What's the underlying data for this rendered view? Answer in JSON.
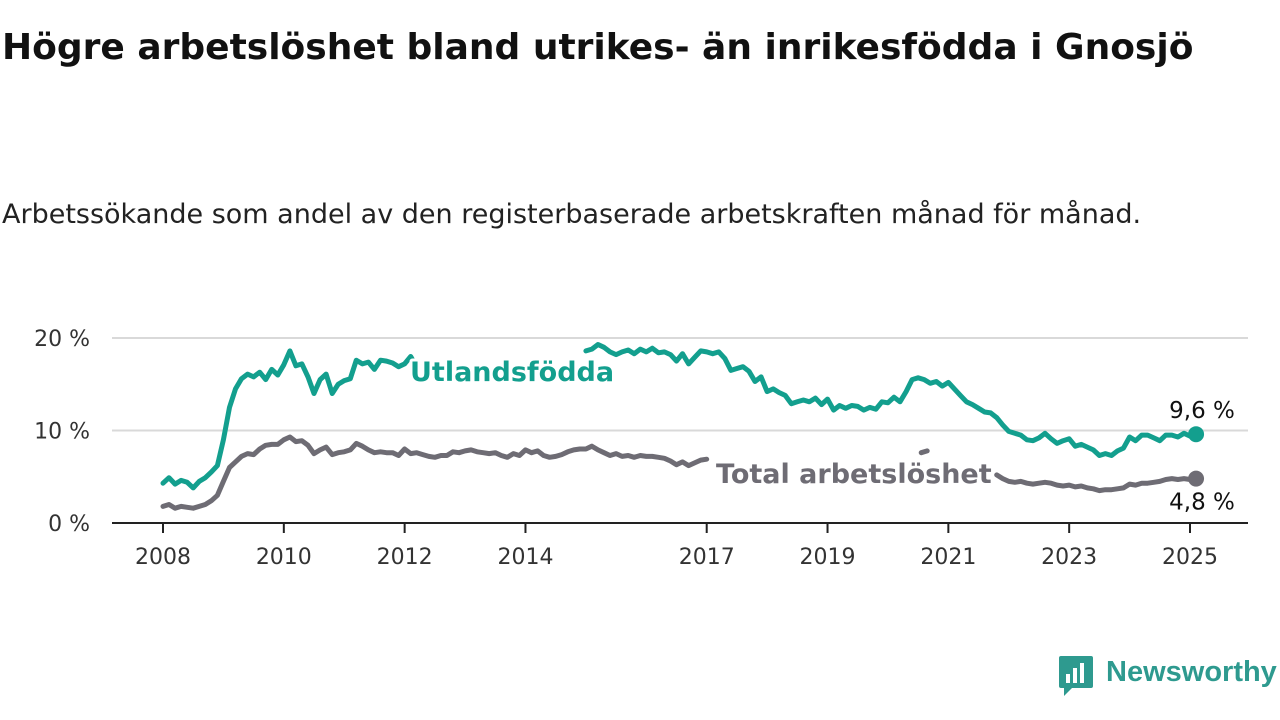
{
  "page": {
    "title": "Högre arbetslöshet bland utrikes- än inrikesfödda i Gnosjö",
    "subtitle": "Arbetssökande som andel av den registerbaserade arbetskraften månad för månad."
  },
  "brand": {
    "name": "Newsworthy",
    "color": "#2e9a8f",
    "icon": "bar-chart-speech-bubble-icon"
  },
  "chart_data": {
    "type": "line",
    "grid": true,
    "x_ticks": [
      "2008",
      "2010",
      "2012",
      "2014",
      "2017",
      "2019",
      "2021",
      "2023",
      "2025"
    ],
    "x_range": [
      2007.7,
      2025.9
    ],
    "y_ticks": [
      "0 %",
      "10 %",
      "20 %"
    ],
    "y_tick_values": [
      0,
      10,
      20
    ],
    "ylim": [
      0,
      20.5
    ],
    "series": [
      {
        "name": "Utlandsfödda",
        "color": "#139f8e",
        "end_label": "9,6 %",
        "points": [
          [
            2008.0,
            4.3
          ],
          [
            2008.1,
            4.9
          ],
          [
            2008.2,
            4.2
          ],
          [
            2008.3,
            4.6
          ],
          [
            2008.4,
            4.4
          ],
          [
            2008.5,
            3.8
          ],
          [
            2008.6,
            4.5
          ],
          [
            2008.7,
            4.9
          ],
          [
            2008.8,
            5.5
          ],
          [
            2008.9,
            6.2
          ],
          [
            2009.0,
            9.0
          ],
          [
            2009.1,
            12.5
          ],
          [
            2009.2,
            14.5
          ],
          [
            2009.3,
            15.6
          ],
          [
            2009.4,
            16.1
          ],
          [
            2009.5,
            15.8
          ],
          [
            2009.6,
            16.3
          ],
          [
            2009.7,
            15.5
          ],
          [
            2009.8,
            16.6
          ],
          [
            2009.9,
            16.0
          ],
          [
            2010.0,
            17.1
          ],
          [
            2010.1,
            18.6
          ],
          [
            2010.2,
            17.0
          ],
          [
            2010.3,
            17.2
          ],
          [
            2010.4,
            15.8
          ],
          [
            2010.5,
            14.0
          ],
          [
            2010.6,
            15.5
          ],
          [
            2010.7,
            16.1
          ],
          [
            2010.8,
            14.0
          ],
          [
            2010.9,
            15.0
          ],
          [
            2011.0,
            15.4
          ],
          [
            2011.1,
            15.6
          ],
          [
            2011.2,
            17.6
          ],
          [
            2011.3,
            17.2
          ],
          [
            2011.4,
            17.4
          ],
          [
            2011.5,
            16.6
          ],
          [
            2011.6,
            17.6
          ],
          [
            2011.7,
            17.5
          ],
          [
            2011.8,
            17.3
          ],
          [
            2011.9,
            16.9
          ],
          [
            2012.0,
            17.2
          ],
          [
            2012.1,
            18.0
          ],
          [
            2012.2,
            16.8
          ],
          [
            2015.0,
            18.6
          ],
          [
            2015.1,
            18.8
          ],
          [
            2015.2,
            19.3
          ],
          [
            2015.3,
            19.0
          ],
          [
            2015.4,
            18.5
          ],
          [
            2015.5,
            18.2
          ],
          [
            2015.6,
            18.5
          ],
          [
            2015.7,
            18.7
          ],
          [
            2015.8,
            18.3
          ],
          [
            2015.9,
            18.8
          ],
          [
            2016.0,
            18.5
          ],
          [
            2016.1,
            18.9
          ],
          [
            2016.2,
            18.4
          ],
          [
            2016.3,
            18.5
          ],
          [
            2016.4,
            18.2
          ],
          [
            2016.5,
            17.5
          ],
          [
            2016.6,
            18.3
          ],
          [
            2016.7,
            17.2
          ],
          [
            2016.8,
            17.9
          ],
          [
            2016.9,
            18.6
          ],
          [
            2017.0,
            18.5
          ],
          [
            2017.1,
            18.3
          ],
          [
            2017.2,
            18.5
          ],
          [
            2017.3,
            17.8
          ],
          [
            2017.4,
            16.5
          ],
          [
            2017.5,
            16.7
          ],
          [
            2017.6,
            16.9
          ],
          [
            2017.7,
            16.4
          ],
          [
            2017.8,
            15.3
          ],
          [
            2017.9,
            15.8
          ],
          [
            2018.0,
            14.2
          ],
          [
            2018.1,
            14.5
          ],
          [
            2018.2,
            14.1
          ],
          [
            2018.3,
            13.8
          ],
          [
            2018.4,
            12.9
          ],
          [
            2018.5,
            13.1
          ],
          [
            2018.6,
            13.3
          ],
          [
            2018.7,
            13.1
          ],
          [
            2018.8,
            13.5
          ],
          [
            2018.9,
            12.8
          ],
          [
            2019.0,
            13.4
          ],
          [
            2019.1,
            12.2
          ],
          [
            2019.2,
            12.7
          ],
          [
            2019.3,
            12.4
          ],
          [
            2019.4,
            12.7
          ],
          [
            2019.5,
            12.6
          ],
          [
            2019.6,
            12.2
          ],
          [
            2019.7,
            12.5
          ],
          [
            2019.8,
            12.3
          ],
          [
            2019.9,
            13.1
          ],
          [
            2020.0,
            13.0
          ],
          [
            2020.1,
            13.6
          ],
          [
            2020.2,
            13.1
          ],
          [
            2020.3,
            14.2
          ],
          [
            2020.4,
            15.5
          ],
          [
            2020.5,
            15.7
          ],
          [
            2020.6,
            15.5
          ],
          [
            2020.7,
            15.1
          ],
          [
            2020.8,
            15.3
          ],
          [
            2020.9,
            14.8
          ],
          [
            2021.0,
            15.2
          ],
          [
            2021.1,
            14.5
          ],
          [
            2021.2,
            13.8
          ],
          [
            2021.3,
            13.1
          ],
          [
            2021.4,
            12.8
          ],
          [
            2021.5,
            12.4
          ],
          [
            2021.6,
            12.0
          ],
          [
            2021.7,
            11.9
          ],
          [
            2021.8,
            11.4
          ],
          [
            2021.9,
            10.6
          ],
          [
            2022.0,
            9.9
          ],
          [
            2022.1,
            9.7
          ],
          [
            2022.2,
            9.5
          ],
          [
            2022.3,
            9.0
          ],
          [
            2022.4,
            8.9
          ],
          [
            2022.5,
            9.2
          ],
          [
            2022.6,
            9.7
          ],
          [
            2022.7,
            9.1
          ],
          [
            2022.8,
            8.6
          ],
          [
            2022.9,
            8.9
          ],
          [
            2023.0,
            9.1
          ],
          [
            2023.1,
            8.3
          ],
          [
            2023.2,
            8.5
          ],
          [
            2023.3,
            8.2
          ],
          [
            2023.4,
            7.9
          ],
          [
            2023.5,
            7.3
          ],
          [
            2023.6,
            7.5
          ],
          [
            2023.7,
            7.3
          ],
          [
            2023.8,
            7.8
          ],
          [
            2023.9,
            8.1
          ],
          [
            2024.0,
            9.3
          ],
          [
            2024.1,
            8.9
          ],
          [
            2024.2,
            9.5
          ],
          [
            2024.3,
            9.5
          ],
          [
            2024.4,
            9.2
          ],
          [
            2024.5,
            8.9
          ],
          [
            2024.6,
            9.5
          ],
          [
            2024.7,
            9.5
          ],
          [
            2024.8,
            9.3
          ],
          [
            2024.9,
            9.7
          ],
          [
            2025.0,
            9.4
          ],
          [
            2025.1,
            9.6
          ]
        ]
      },
      {
        "name": "Total arbetslöshet",
        "color": "#6e6c74",
        "end_label": "4,8 %",
        "points": [
          [
            2008.0,
            1.8
          ],
          [
            2008.1,
            2.0
          ],
          [
            2008.2,
            1.6
          ],
          [
            2008.3,
            1.8
          ],
          [
            2008.4,
            1.7
          ],
          [
            2008.5,
            1.6
          ],
          [
            2008.6,
            1.8
          ],
          [
            2008.7,
            2.0
          ],
          [
            2008.8,
            2.4
          ],
          [
            2008.9,
            3.0
          ],
          [
            2009.0,
            4.5
          ],
          [
            2009.1,
            6.0
          ],
          [
            2009.2,
            6.6
          ],
          [
            2009.3,
            7.2
          ],
          [
            2009.4,
            7.5
          ],
          [
            2009.5,
            7.4
          ],
          [
            2009.6,
            8.0
          ],
          [
            2009.7,
            8.4
          ],
          [
            2009.8,
            8.5
          ],
          [
            2009.9,
            8.5
          ],
          [
            2010.0,
            9.0
          ],
          [
            2010.1,
            9.3
          ],
          [
            2010.2,
            8.8
          ],
          [
            2010.3,
            8.9
          ],
          [
            2010.4,
            8.4
          ],
          [
            2010.5,
            7.5
          ],
          [
            2010.6,
            7.9
          ],
          [
            2010.7,
            8.2
          ],
          [
            2010.8,
            7.4
          ],
          [
            2010.9,
            7.6
          ],
          [
            2011.0,
            7.7
          ],
          [
            2011.1,
            7.9
          ],
          [
            2011.2,
            8.6
          ],
          [
            2011.3,
            8.3
          ],
          [
            2011.4,
            7.9
          ],
          [
            2011.5,
            7.6
          ],
          [
            2011.6,
            7.7
          ],
          [
            2011.7,
            7.6
          ],
          [
            2011.8,
            7.6
          ],
          [
            2011.9,
            7.3
          ],
          [
            2012.0,
            8.0
          ],
          [
            2012.1,
            7.5
          ],
          [
            2012.2,
            7.6
          ],
          [
            2012.3,
            7.4
          ],
          [
            2012.4,
            7.2
          ],
          [
            2012.5,
            7.1
          ],
          [
            2012.6,
            7.3
          ],
          [
            2012.7,
            7.3
          ],
          [
            2012.8,
            7.7
          ],
          [
            2012.9,
            7.6
          ],
          [
            2013.0,
            7.8
          ],
          [
            2013.1,
            7.9
          ],
          [
            2013.2,
            7.7
          ],
          [
            2013.3,
            7.6
          ],
          [
            2013.4,
            7.5
          ],
          [
            2013.5,
            7.6
          ],
          [
            2013.6,
            7.3
          ],
          [
            2013.7,
            7.1
          ],
          [
            2013.8,
            7.5
          ],
          [
            2013.9,
            7.3
          ],
          [
            2014.0,
            7.9
          ],
          [
            2014.1,
            7.6
          ],
          [
            2014.2,
            7.8
          ],
          [
            2014.3,
            7.3
          ],
          [
            2014.4,
            7.1
          ],
          [
            2014.5,
            7.2
          ],
          [
            2014.6,
            7.4
          ],
          [
            2014.7,
            7.7
          ],
          [
            2014.8,
            7.9
          ],
          [
            2014.9,
            8.0
          ],
          [
            2015.0,
            8.0
          ],
          [
            2015.1,
            8.3
          ],
          [
            2015.2,
            7.9
          ],
          [
            2015.3,
            7.6
          ],
          [
            2015.4,
            7.3
          ],
          [
            2015.5,
            7.5
          ],
          [
            2015.6,
            7.2
          ],
          [
            2015.7,
            7.3
          ],
          [
            2015.8,
            7.1
          ],
          [
            2015.9,
            7.3
          ],
          [
            2016.0,
            7.2
          ],
          [
            2016.1,
            7.2
          ],
          [
            2016.2,
            7.1
          ],
          [
            2016.3,
            7.0
          ],
          [
            2016.4,
            6.7
          ],
          [
            2016.5,
            6.3
          ],
          [
            2016.6,
            6.6
          ],
          [
            2016.7,
            6.2
          ],
          [
            2016.8,
            6.5
          ],
          [
            2016.9,
            6.8
          ],
          [
            2017.0,
            6.9
          ],
          [
            2020.55,
            7.6
          ],
          [
            2020.65,
            7.8
          ],
          [
            2021.8,
            5.2
          ],
          [
            2021.9,
            4.8
          ],
          [
            2022.0,
            4.5
          ],
          [
            2022.1,
            4.4
          ],
          [
            2022.2,
            4.5
          ],
          [
            2022.3,
            4.3
          ],
          [
            2022.4,
            4.2
          ],
          [
            2022.5,
            4.3
          ],
          [
            2022.6,
            4.4
          ],
          [
            2022.7,
            4.3
          ],
          [
            2022.8,
            4.1
          ],
          [
            2022.9,
            4.0
          ],
          [
            2023.0,
            4.1
          ],
          [
            2023.1,
            3.9
          ],
          [
            2023.2,
            4.0
          ],
          [
            2023.3,
            3.8
          ],
          [
            2023.4,
            3.7
          ],
          [
            2023.5,
            3.5
          ],
          [
            2023.6,
            3.6
          ],
          [
            2023.7,
            3.6
          ],
          [
            2023.8,
            3.7
          ],
          [
            2023.9,
            3.8
          ],
          [
            2024.0,
            4.2
          ],
          [
            2024.1,
            4.1
          ],
          [
            2024.2,
            4.3
          ],
          [
            2024.3,
            4.3
          ],
          [
            2024.4,
            4.4
          ],
          [
            2024.5,
            4.5
          ],
          [
            2024.6,
            4.7
          ],
          [
            2024.7,
            4.8
          ],
          [
            2024.8,
            4.7
          ],
          [
            2024.9,
            4.8
          ],
          [
            2025.0,
            4.7
          ],
          [
            2025.1,
            4.8
          ]
        ]
      }
    ]
  }
}
